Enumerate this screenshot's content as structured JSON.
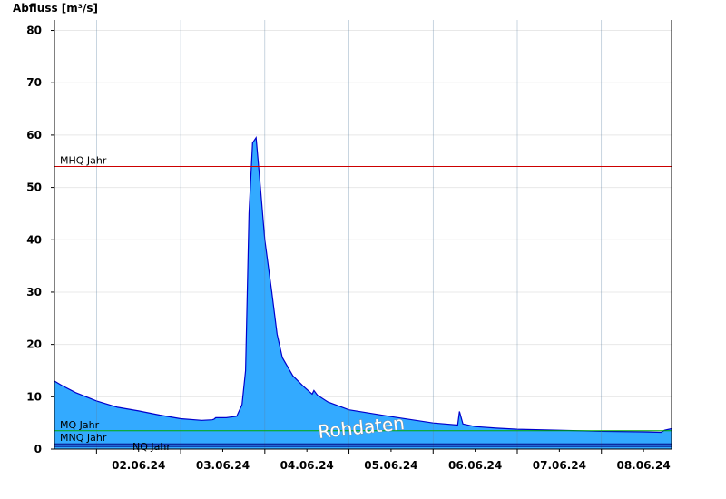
{
  "chart_data": {
    "type": "area",
    "ylabel": "Abfluss [m³/s]",
    "ylim": [
      0,
      82
    ],
    "yticks": [
      0,
      10,
      20,
      30,
      40,
      50,
      60,
      70,
      80
    ],
    "xlim": [
      "2024-06-01T12:00",
      "2024-06-08T20:00"
    ],
    "xtick_labels": [
      "02.06.24",
      "03.06.24",
      "04.06.24",
      "05.06.24",
      "06.06.24",
      "07.06.24",
      "08.06.24"
    ],
    "grid": true,
    "watermark": "Rohdaten",
    "reference_lines": [
      {
        "label": "MHQ Jahr",
        "value": 54,
        "color": "#cc0000"
      },
      {
        "label": "MQ Jahr",
        "value": 3.5,
        "color": "#00aa00"
      },
      {
        "label": "MNQ Jahr",
        "value": 1.0,
        "color": "#000080"
      },
      {
        "label": "NQ Jahr",
        "value": 0.5,
        "color": "#000080"
      }
    ],
    "series": [
      {
        "color": "#33aaff",
        "outline_color": "#0000cc",
        "x": [
          "2024-06-01T12:00",
          "2024-06-01T14:00",
          "2024-06-01T18:00",
          "2024-06-02T00:00",
          "2024-06-02T06:00",
          "2024-06-02T12:00",
          "2024-06-02T18:00",
          "2024-06-03T00:00",
          "2024-06-03T06:00",
          "2024-06-03T09:00",
          "2024-06-03T09:30",
          "2024-06-03T10:00",
          "2024-06-03T13:00",
          "2024-06-03T16:00",
          "2024-06-03T17:30",
          "2024-06-03T18:30",
          "2024-06-03T19:30",
          "2024-06-03T20:30",
          "2024-06-03T21:30",
          "2024-06-03T22:30",
          "2024-06-04T00:00",
          "2024-06-04T02:00",
          "2024-06-04T03:30",
          "2024-06-04T05:00",
          "2024-06-04T08:00",
          "2024-06-04T11:00",
          "2024-06-04T13:30",
          "2024-06-04T14:00",
          "2024-06-04T15:00",
          "2024-06-04T18:00",
          "2024-06-05T00:00",
          "2024-06-05T12:00",
          "2024-06-06T00:00",
          "2024-06-06T07:00",
          "2024-06-06T07:30",
          "2024-06-06T08:30",
          "2024-06-06T12:00",
          "2024-06-06T18:00",
          "2024-06-07T00:00",
          "2024-06-07T12:00",
          "2024-06-08T00:00",
          "2024-06-08T12:00",
          "2024-06-08T17:00",
          "2024-06-08T18:00",
          "2024-06-08T20:00"
        ],
        "y": [
          13,
          12.2,
          10.8,
          9.2,
          8.0,
          7.3,
          6.5,
          5.8,
          5.5,
          5.6,
          5.7,
          6.0,
          6.0,
          6.3,
          8.5,
          15,
          45,
          58.5,
          59.5,
          52,
          40,
          30,
          22,
          17.5,
          14,
          12,
          10.5,
          11.2,
          10.3,
          9.0,
          7.5,
          6.2,
          5.0,
          4.6,
          7.2,
          4.8,
          4.3,
          4.0,
          3.8,
          3.6,
          3.4,
          3.3,
          3.2,
          3.6,
          3.9
        ]
      }
    ]
  }
}
